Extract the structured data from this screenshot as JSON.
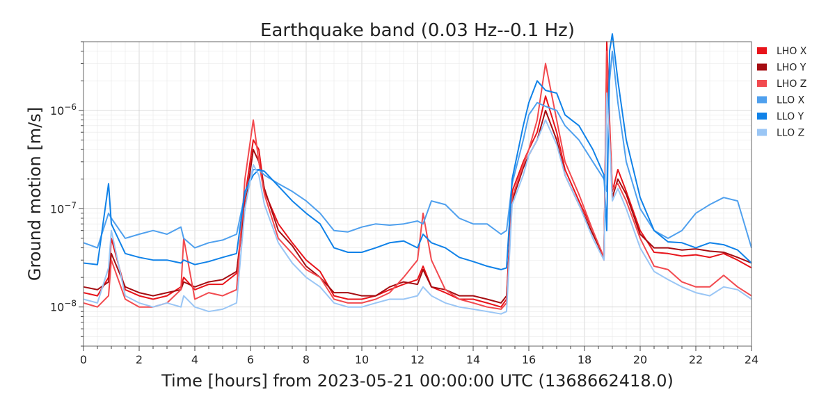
{
  "chart_data": {
    "type": "line",
    "title": "Earthquake band (0.03 Hz--0.1 Hz)",
    "xlabel": "Time [hours] from 2023-05-21 00:00:00 UTC (1368662418.0)",
    "ylabel": "Ground motion [m/s]",
    "xlim": [
      0,
      24
    ],
    "ylim": [
      4e-09,
      5e-06
    ],
    "yscale": "log",
    "grid": true,
    "legend_placement": "outside-right-top",
    "x_ticks": [
      0,
      2,
      4,
      6,
      8,
      10,
      12,
      14,
      16,
      18,
      20,
      22,
      24
    ],
    "y_ticks": [
      {
        "value": 1e-08,
        "base": "10",
        "exp": "−8"
      },
      {
        "value": 1e-07,
        "base": "10",
        "exp": "−7"
      },
      {
        "value": 1e-06,
        "base": "10",
        "exp": "−6"
      }
    ],
    "x": [
      0,
      0.5,
      0.9,
      1,
      1.5,
      2,
      2.5,
      3,
      3.5,
      3.6,
      4,
      4.5,
      5,
      5.5,
      5.8,
      6.1,
      6.3,
      6.5,
      7,
      7.5,
      8,
      8.5,
      9,
      9.5,
      10,
      10.5,
      11,
      11.5,
      12,
      12.2,
      12.5,
      13,
      13.5,
      14,
      14.5,
      15,
      15.2,
      15.4,
      15.8,
      16,
      16.3,
      16.6,
      17,
      17.3,
      17.8,
      18.3,
      18.7,
      18.8,
      18.9,
      19,
      19.2,
      19.5,
      20,
      20.5,
      21,
      21.5,
      22,
      22.5,
      23,
      23.5,
      24
    ],
    "series": [
      {
        "name": "LHO X",
        "color": "#e8141b",
        "values": [
          1.4e-08,
          1.3e-08,
          2e-08,
          5e-08,
          1.5e-08,
          1.3e-08,
          1.2e-08,
          1.3e-08,
          1.6e-08,
          2e-08,
          1.5e-08,
          1.7e-08,
          1.7e-08,
          2.2e-08,
          1.3e-07,
          5e-07,
          4e-07,
          1.5e-07,
          7e-08,
          4.5e-08,
          3e-08,
          2.3e-08,
          1.3e-08,
          1.2e-08,
          1.2e-08,
          1.3e-08,
          1.5e-08,
          1.7e-08,
          1.9e-08,
          2.6e-08,
          1.6e-08,
          1.4e-08,
          1.2e-08,
          1.2e-08,
          1.1e-08,
          1e-08,
          1.2e-08,
          1.5e-07,
          3e-07,
          4e-07,
          6e-07,
          1.4e-06,
          6e-07,
          2.5e-07,
          1.2e-07,
          6e-08,
          3e-08,
          5e-06,
          8e-07,
          1.5e-07,
          2.5e-07,
          1.5e-07,
          6e-08,
          3.6e-08,
          3.5e-08,
          3.3e-08,
          3.4e-08,
          3.2e-08,
          3.5e-08,
          3e-08,
          2.5e-08
        ]
      },
      {
        "name": "LHO Y",
        "color": "#a50d12",
        "values": [
          1.6e-08,
          1.5e-08,
          1.8e-08,
          3.5e-08,
          1.6e-08,
          1.4e-08,
          1.3e-08,
          1.4e-08,
          1.5e-08,
          1.8e-08,
          1.6e-08,
          1.8e-08,
          1.9e-08,
          2.3e-08,
          1e-07,
          4e-07,
          3e-07,
          1.6e-07,
          6e-08,
          4.2e-08,
          2.6e-08,
          2e-08,
          1.4e-08,
          1.4e-08,
          1.3e-08,
          1.3e-08,
          1.6e-08,
          1.8e-08,
          1.7e-08,
          2.4e-08,
          1.6e-08,
          1.5e-08,
          1.3e-08,
          1.3e-08,
          1.2e-08,
          1.1e-08,
          1.3e-08,
          1.2e-07,
          2.6e-07,
          3.5e-07,
          5e-07,
          1e-06,
          5e-07,
          2.2e-07,
          1.1e-07,
          5.5e-08,
          3.2e-08,
          3e-06,
          6e-07,
          1.3e-07,
          2e-07,
          1.4e-07,
          5.5e-08,
          4e-08,
          4e-08,
          3.8e-08,
          3.9e-08,
          3.7e-08,
          3.6e-08,
          3.2e-08,
          2.8e-08
        ]
      },
      {
        "name": "LHO Z",
        "color": "#f24a4f",
        "values": [
          1.1e-08,
          1e-08,
          1.3e-08,
          3e-08,
          1.2e-08,
          1e-08,
          1e-08,
          1.1e-08,
          1.5e-08,
          5e-08,
          1.2e-08,
          1.4e-08,
          1.3e-08,
          1.5e-08,
          2e-07,
          8e-07,
          3e-07,
          1.4e-07,
          5e-08,
          3.5e-08,
          2.4e-08,
          2e-08,
          1.2e-08,
          1.1e-08,
          1.1e-08,
          1.2e-08,
          1.4e-08,
          2e-08,
          3e-08,
          9e-08,
          3e-08,
          1.5e-08,
          1.2e-08,
          1.1e-08,
          1e-08,
          9.5e-09,
          1.1e-08,
          1.3e-07,
          2.8e-07,
          4e-07,
          8e-07,
          3e-06,
          8e-07,
          3e-07,
          1.4e-07,
          6e-08,
          3.2e-08,
          4e-06,
          7e-07,
          1.6e-07,
          1.8e-07,
          1.2e-07,
          5e-08,
          2.6e-08,
          2.4e-08,
          1.8e-08,
          1.6e-08,
          1.6e-08,
          2.1e-08,
          1.6e-08,
          1.3e-08
        ]
      },
      {
        "name": "LLO X",
        "color": "#4fa0ee",
        "values": [
          4.5e-08,
          4e-08,
          9e-08,
          8e-08,
          5e-08,
          5.5e-08,
          6e-08,
          5.5e-08,
          6.5e-08,
          5e-08,
          4e-08,
          4.5e-08,
          4.8e-08,
          5.5e-08,
          1.4e-07,
          2.5e-07,
          2.5e-07,
          2.2e-07,
          1.8e-07,
          1.5e-07,
          1.2e-07,
          9e-08,
          6e-08,
          5.8e-08,
          6.5e-08,
          7e-08,
          6.8e-08,
          7e-08,
          7.5e-08,
          7e-08,
          1.2e-07,
          1.1e-07,
          8e-08,
          7e-08,
          7e-08,
          5.5e-08,
          6e-08,
          1.8e-07,
          5e-07,
          9e-07,
          1.2e-06,
          1.1e-06,
          1e-06,
          7e-07,
          5e-07,
          3e-07,
          2e-07,
          1.5e-07,
          2e-06,
          4e-06,
          1.2e-06,
          3e-07,
          1e-07,
          6e-08,
          5e-08,
          6e-08,
          9e-08,
          1.1e-07,
          1.3e-07,
          1.2e-07,
          4e-08
        ]
      },
      {
        "name": "LLO Y",
        "color": "#1082e8",
        "values": [
          2.8e-08,
          2.7e-08,
          1.8e-07,
          7e-08,
          3.5e-08,
          3.2e-08,
          3e-08,
          3e-08,
          2.8e-08,
          3e-08,
          2.7e-08,
          2.9e-08,
          3.2e-08,
          3.5e-08,
          1.5e-07,
          2.2e-07,
          2.5e-07,
          2.4e-07,
          1.7e-07,
          1.2e-07,
          9e-08,
          7e-08,
          4e-08,
          3.6e-08,
          3.6e-08,
          4e-08,
          4.5e-08,
          4.7e-08,
          4e-08,
          5.5e-08,
          4.5e-08,
          4e-08,
          3.2e-08,
          2.9e-08,
          2.6e-08,
          2.4e-08,
          2.5e-08,
          2e-07,
          7e-07,
          1.2e-06,
          2e-06,
          1.6e-06,
          1.5e-06,
          9e-07,
          7e-07,
          4e-07,
          2.2e-07,
          6e-08,
          4e-06,
          6e-06,
          2e-06,
          5e-07,
          1.3e-07,
          6e-08,
          4.6e-08,
          4.5e-08,
          4e-08,
          4.5e-08,
          4.3e-08,
          3.8e-08,
          2.8e-08
        ]
      },
      {
        "name": "LLO Z",
        "color": "#9ac6f5",
        "values": [
          1.2e-08,
          1.1e-08,
          2.5e-08,
          6e-08,
          1.3e-08,
          1.1e-08,
          1e-08,
          1.1e-08,
          1e-08,
          1.3e-08,
          1e-08,
          9e-09,
          9.5e-09,
          1.1e-08,
          1e-07,
          2.8e-07,
          2.2e-07,
          1.1e-07,
          4.5e-08,
          2.8e-08,
          2e-08,
          1.6e-08,
          1.1e-08,
          1e-08,
          1e-08,
          1.1e-08,
          1.2e-08,
          1.2e-08,
          1.3e-08,
          1.6e-08,
          1.3e-08,
          1.1e-08,
          1e-08,
          9.5e-09,
          9e-09,
          8.5e-09,
          9e-09,
          1.1e-07,
          2.2e-07,
          3.5e-07,
          5e-07,
          8e-07,
          4.5e-07,
          2.2e-07,
          1.1e-07,
          5e-08,
          3e-08,
          1.5e-06,
          5e-07,
          1.2e-07,
          1.6e-07,
          1e-07,
          4e-08,
          2.3e-08,
          1.9e-08,
          1.6e-08,
          1.4e-08,
          1.3e-08,
          1.6e-08,
          1.5e-08,
          1.2e-08
        ]
      }
    ]
  }
}
